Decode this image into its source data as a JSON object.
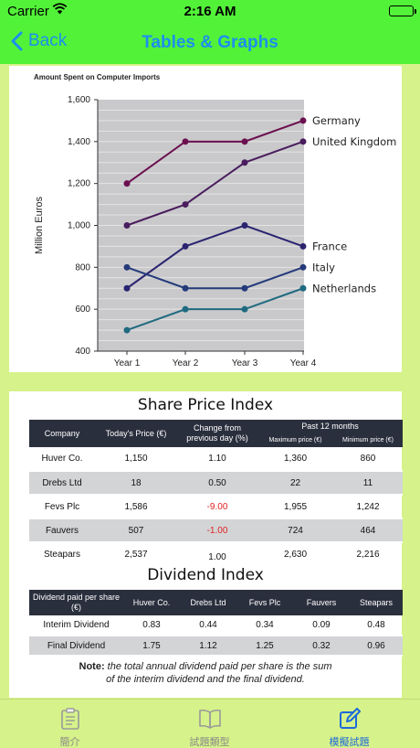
{
  "status": {
    "carrier": "Carrier",
    "time": "2:16 AM"
  },
  "nav": {
    "back_label": "Back",
    "title": "Tables & Graphs"
  },
  "chart_data": {
    "type": "line",
    "title": "Amount Spent on Computer Imports",
    "ylabel": "Million Euros",
    "xlabel": "",
    "categories": [
      "Year 1",
      "Year 2",
      "Year 3",
      "Year 4"
    ],
    "ylim": [
      400,
      1600
    ],
    "yticks": [
      400,
      600,
      800,
      1000,
      1200,
      1400,
      1600
    ],
    "ytick_labels": [
      "400",
      "600",
      "800",
      "1,000",
      "1,200",
      "1,400",
      "1,600"
    ],
    "grid": true,
    "series": [
      {
        "name": "Germany",
        "values": [
          1200,
          1400,
          1400,
          1500
        ],
        "color": "#6b0f4f"
      },
      {
        "name": "United Kingdom",
        "values": [
          1000,
          1100,
          1300,
          1400
        ],
        "color": "#4a1d5e"
      },
      {
        "name": "France",
        "values": [
          700,
          900,
          1000,
          900
        ],
        "color": "#2a2470"
      },
      {
        "name": "Italy",
        "values": [
          800,
          700,
          700,
          800
        ],
        "color": "#243a7a"
      },
      {
        "name": "Netherlands",
        "values": [
          500,
          600,
          600,
          700
        ],
        "color": "#1f6a80"
      }
    ]
  },
  "share_table": {
    "title": "Share Price Index",
    "headers": {
      "company": "Company",
      "price": "Today's Price (€)",
      "change": "Change from previous day (%)",
      "past": "Past 12 months",
      "max": "Maximum price (€)",
      "min": "Minimum price (€)"
    },
    "rows": [
      [
        "Huver Co.",
        "1,150",
        "1.10",
        "1,360",
        "860"
      ],
      [
        "Drebs Ltd",
        "18",
        "0.50",
        "22",
        "11"
      ],
      [
        "Fevs Plc",
        "1,586",
        "-9.00",
        "1,955",
        "1,242"
      ],
      [
        "Fauvers",
        "507",
        "-1.00",
        "724",
        "464"
      ],
      [
        "Steapars",
        "2,537",
        "1.00",
        "2,630",
        "2,216"
      ]
    ]
  },
  "dividend_table": {
    "title": "Dividend Index",
    "headers": [
      "Dividend paid per share (€)",
      "Huver Co.",
      "Drebs Ltd",
      "Fevs Plc",
      "Fauvers",
      "Steapars"
    ],
    "rows": [
      [
        "Interim Dividend",
        "0.83",
        "0.44",
        "0.34",
        "0.09",
        "0.48"
      ],
      [
        "Final Dividend",
        "1.75",
        "1.12",
        "1.25",
        "0.32",
        "0.96"
      ]
    ]
  },
  "note": {
    "label": "Note:",
    "text1": "the total annual dividend paid per share is the sum",
    "text2": "of the interim dividend and the final dividend."
  },
  "tabs": [
    {
      "label": "簡介",
      "icon": "clipboard-icon",
      "active": false
    },
    {
      "label": "試題類型",
      "icon": "book-icon",
      "active": false
    },
    {
      "label": "模擬試題",
      "icon": "edit-icon",
      "active": true
    }
  ]
}
